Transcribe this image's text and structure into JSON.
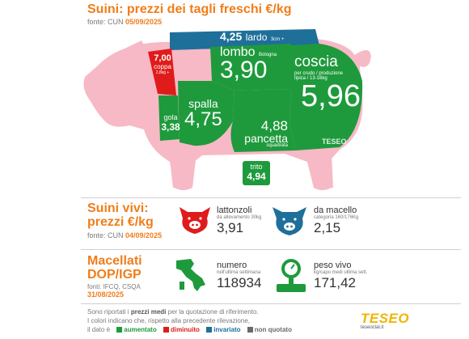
{
  "header": {
    "title": "Suini: prezzi dei tagli freschi €/kg",
    "source_prefix": "fonte: CUN ",
    "source_date": "05/09/2025"
  },
  "cuts": {
    "lardo": {
      "price": "4,25",
      "name": "lardo",
      "note": "3cm +"
    },
    "coppa": {
      "price": "7,00",
      "name": "coppa",
      "note": "2,8kg +"
    },
    "lombo": {
      "name": "lombo",
      "note": "Bologna",
      "price": "3,90"
    },
    "coscia": {
      "name": "coscia",
      "note1": "per crudo / produzione",
      "note2": "tipica / 13-16kg",
      "price": "5,96"
    },
    "spalla": {
      "name": "spalla",
      "price": "4,75"
    },
    "gola": {
      "name": "gola",
      "price": "3,38"
    },
    "pancetta": {
      "price": "4,88",
      "name": "pancetta",
      "note": "squadrata"
    },
    "trito": {
      "name": "trito",
      "price": "4,94"
    }
  },
  "watermark_pig": "TESEO",
  "live": {
    "title1": "Suini vivi:",
    "title2": "prezzi €/kg",
    "source_prefix": "fonte: CUN ",
    "source_date": "04/09/2025",
    "lattonzoli": {
      "name": "lattonzoli",
      "note": "da allevamento 30kg",
      "price": "3,91"
    },
    "macello": {
      "name": "da macello",
      "note": "categoria 160/176Kg",
      "price": "2,15"
    }
  },
  "dop": {
    "title1": "Macellati",
    "title2": "DOP/IGP",
    "source": "fonti: IFCQ, CSQA",
    "date": "31/08/2025",
    "numero": {
      "name": "numero",
      "note": "nell'ultima settimana",
      "value": "118934"
    },
    "peso": {
      "name": "peso vivo",
      "note": "kg/capo medi ultima sett.",
      "value": "171,42"
    }
  },
  "footer": {
    "line1_a": "Sono riportati i ",
    "line1_b": "prezzi medi",
    "line1_c": " per la quotazione di riferimento.",
    "line2": "I colori indicano che, rispetto alla precedente rilevazione,",
    "line3_prefix": "il dato è",
    "aumentato": "aumentato",
    "diminuito": "diminuito",
    "invariato": "invariato",
    "non_quotato": "non quotato",
    "brand": "TESEO",
    "brand_url": "teseoclal.it"
  },
  "colors": {
    "increased": "#1e9a3c",
    "decreased": "#e01b1b",
    "unchanged": "#1f6f9b",
    "not_quoted": "#6a6a6a",
    "pig": "#f7b9c6",
    "accent": "#f07d1a"
  }
}
